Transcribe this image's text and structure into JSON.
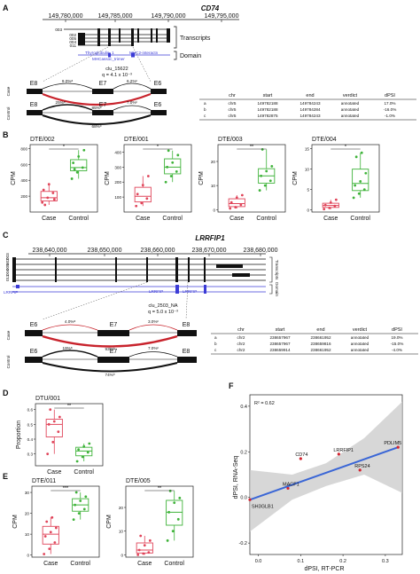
{
  "panelA": {
    "label": "A",
    "gene": "CD74",
    "coords": [
      "149,780,000",
      "149,785,000",
      "149,790,000",
      "149,795,000"
    ],
    "transcript_ids": [
      "003",
      "002",
      "005",
      "004",
      "011"
    ],
    "transcripts_label": "Transcripts",
    "domain_label": "Domain",
    "domains": [
      "Thyroglobulin_1",
      "MHC2-interactn",
      "MHCassoc_trimer"
    ],
    "cluster": "clu_15622",
    "q": "q = 4.1 x 10⁻³",
    "case_label": "Case",
    "control_label": "Control",
    "exons": [
      "E8",
      "E7",
      "E6"
    ],
    "case_pcts": [
      "9.0%ᵃ",
      "6.2%ᶜ",
      "85%ᵇ"
    ],
    "control_pcts": [
      "25%ᵃ",
      "7.0%ᶜ",
      "68%ᵇ"
    ],
    "table": {
      "headers": [
        "chr",
        "start",
        "end",
        "verdict",
        "dPSI"
      ],
      "rows": [
        [
          "a",
          "chr5",
          "149782188",
          "149784243",
          "annotated",
          "17.0%"
        ],
        [
          "b",
          "chr5",
          "149782188",
          "149784284",
          "annotated",
          "-16.0%"
        ],
        [
          "c",
          "chr5",
          "149782875",
          "149784243",
          "annotated",
          "-1.0%"
        ]
      ]
    }
  },
  "panelB": {
    "label": "B",
    "ylabel": "CPM",
    "plots": [
      {
        "title": "DTE/002",
        "sig": "*",
        "yticks": [
          "200",
          "400",
          "600",
          "800"
        ]
      },
      {
        "title": "DTE/001",
        "sig": "*",
        "yticks": [
          "100",
          "200",
          "300",
          "400"
        ]
      },
      {
        "title": "DTE/003",
        "sig": "**",
        "yticks": [
          "0",
          "10",
          "20"
        ]
      },
      {
        "title": "DTE/004",
        "sig": "*",
        "yticks": [
          "0",
          "5",
          "10",
          "15"
        ]
      }
    ],
    "groups": [
      "Case",
      "Control"
    ]
  },
  "panelC": {
    "label": "C",
    "gene": "LRRFIP1",
    "coords": [
      "238,640,000",
      "238,650,000",
      "238,660,000",
      "238,670,000",
      "238,680,000"
    ],
    "transcript_ids": [
      "003",
      "002",
      "005",
      "004",
      "011"
    ],
    "transcripts_label": "Transcripts",
    "domain_label": "Domain",
    "domains": [
      "LRRFIP",
      "LRRFIP",
      "LRRFIP"
    ],
    "cluster": "clu_2503_NA",
    "q": "q = 5.0 x 10⁻³",
    "case_label": "Case",
    "control_label": "Control",
    "exons": [
      "E6",
      "E7",
      "E8"
    ],
    "case_pcts": [
      "4.0%ᵃ",
      "3.0%ᶜ",
      "93%ᵇ"
    ],
    "control_pcts": [
      "19%ᵃ",
      "7.0%ᶜ",
      "74%ᵇ"
    ],
    "table": {
      "headers": [
        "chr",
        "start",
        "end",
        "verdict",
        "dPSI"
      ],
      "rows": [
        [
          "a",
          "chr2",
          "238657967",
          "238661952",
          "annotated",
          "19.0%"
        ],
        [
          "b",
          "chr2",
          "238657967",
          "238659816",
          "annotated",
          "-15.0%"
        ],
        [
          "c",
          "chr2",
          "238659914",
          "238661952",
          "annotated",
          "-4.0%"
        ]
      ]
    }
  },
  "panelD": {
    "label": "D",
    "title": "DTU/001",
    "sig": "**",
    "ylabel": "Proportion",
    "yticks": [
      "0.3",
      "0.4",
      "0.5",
      "0.6"
    ],
    "groups": [
      "Case",
      "Control"
    ]
  },
  "panelE": {
    "label": "E",
    "ylabel": "CPM",
    "plots": [
      {
        "title": "DTE/011",
        "sig": "***",
        "yticks": [
          "0",
          "10",
          "20",
          "30"
        ]
      },
      {
        "title": "DTE/005",
        "sig": "**",
        "yticks": [
          "0",
          "10",
          "20"
        ]
      }
    ],
    "groups": [
      "Case",
      "Control"
    ]
  },
  "panelF": {
    "label": "F",
    "r2": "R² = 0.62",
    "ylabel": "dPSI, RNA-Seq",
    "xlabel": "dPSI, RT-PCR",
    "xticks": [
      "0.0",
      "0.1",
      "0.2",
      "0.3"
    ],
    "yticks": [
      "-0.2",
      "0.0",
      "0.2",
      "0.4"
    ]
  },
  "chart_data": [
    {
      "type": "scatter",
      "xlabel": "dPSI, RT-PCR",
      "ylabel": "dPSI, RNA-Seq",
      "xlim": [
        -0.02,
        0.34
      ],
      "ylim": [
        -0.25,
        0.45
      ],
      "points": [
        {
          "label": "PDLIM5",
          "x": 0.33,
          "y": 0.22
        },
        {
          "label": "RPS24",
          "x": 0.24,
          "y": 0.12
        },
        {
          "label": "LRRFIP1",
          "x": 0.19,
          "y": 0.19
        },
        {
          "label": "CD74",
          "x": 0.1,
          "y": 0.17
        },
        {
          "label": "MACF1",
          "x": 0.07,
          "y": 0.04
        },
        {
          "label": "SH3GLB1",
          "x": -0.02,
          "y": -0.01
        }
      ],
      "fit": {
        "x": [
          -0.02,
          0.33
        ],
        "y": [
          -0.01,
          0.22
        ]
      }
    },
    {
      "type": "box",
      "title": "DTE/002",
      "groups": [
        "Case",
        "Control"
      ],
      "values": [
        [
          120,
          180,
          240,
          280,
          350,
          160,
          90
        ],
        [
          420,
          500,
          560,
          620,
          700,
          780,
          540
        ]
      ]
    },
    {
      "type": "box",
      "title": "DTE/001",
      "groups": [
        "Case",
        "Control"
      ],
      "values": [
        [
          40,
          60,
          90,
          120,
          180,
          240
        ],
        [
          200,
          240,
          270,
          300,
          330,
          380,
          410
        ]
      ]
    },
    {
      "type": "box",
      "title": "DTE/003",
      "groups": [
        "Case",
        "Control"
      ],
      "values": [
        [
          0.5,
          1,
          2,
          3,
          5,
          6
        ],
        [
          8,
          10,
          12,
          14,
          16,
          18,
          25
        ]
      ]
    },
    {
      "type": "box",
      "title": "DTE/004",
      "groups": [
        "Case",
        "Control"
      ],
      "values": [
        [
          0.2,
          0.5,
          1,
          1.2,
          1.8,
          2.5
        ],
        [
          3,
          4,
          5,
          6,
          7,
          9,
          13,
          14
        ]
      ]
    },
    {
      "type": "box",
      "title": "DTU/001",
      "groups": [
        "Case",
        "Control"
      ],
      "values": [
        [
          0.3,
          0.38,
          0.45,
          0.5,
          0.52,
          0.55,
          0.6
        ],
        [
          0.25,
          0.28,
          0.31,
          0.33,
          0.35,
          0.37
        ]
      ]
    },
    {
      "type": "box",
      "title": "DTE/011",
      "groups": [
        "Case",
        "Control"
      ],
      "values": [
        [
          0.5,
          3,
          6,
          9,
          11,
          13,
          16,
          18
        ],
        [
          17,
          20,
          22,
          24,
          26,
          28,
          30
        ]
      ]
    },
    {
      "type": "box",
      "title": "DTE/005",
      "groups": [
        "Case",
        "Control"
      ],
      "values": [
        [
          0,
          0.5,
          1,
          2,
          4,
          6,
          8
        ],
        [
          6,
          10,
          15,
          18,
          22,
          24,
          27
        ]
      ]
    }
  ]
}
